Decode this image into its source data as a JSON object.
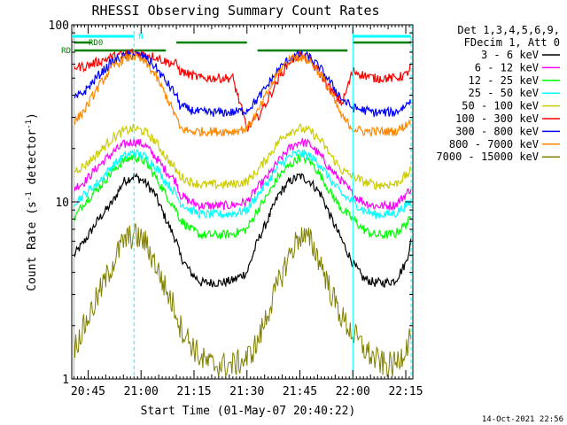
{
  "chart_data": {
    "type": "line",
    "title": "RHESSI Observing Summary Count Rates",
    "xlabel": "Start Time (01-May-07 20:40:22)",
    "ylabel": "Count Rate (s",
    "ylabel_sup": "-1",
    "ylabel_tail": " detector",
    "ylabel_tail_sup": "-1",
    "ylabel_close": ")",
    "y_scale": "log",
    "ylim": [
      1,
      100
    ],
    "y_ticks": [
      {
        "value": 1,
        "label": "1"
      },
      {
        "value": 10,
        "label": "10"
      },
      {
        "value": 100,
        "label": "100"
      }
    ],
    "xlim": [
      "20:40:22",
      "22:17:00"
    ],
    "x_ticks": [
      {
        "value": "20:45",
        "label": "20:45"
      },
      {
        "value": "21:00",
        "label": "21:00"
      },
      {
        "value": "21:15",
        "label": "21:15"
      },
      {
        "value": "21:30",
        "label": "21:30"
      },
      {
        "value": "21:45",
        "label": "21:45"
      },
      {
        "value": "22:00",
        "label": "22:00"
      },
      {
        "value": "22:15",
        "label": "22:15"
      }
    ],
    "legend_header": [
      "Det 1,3,4,5,6,9,",
      "FDecim 1, Att 0"
    ],
    "legend_position": "right",
    "footer_date": "14-Oct-2021 22:56",
    "flags": [
      {
        "label": "N",
        "color": "#00ffff",
        "intervals": [
          [
            "20:40:22",
            "20:58:00"
          ],
          [
            "22:00:00",
            "22:16:30"
          ]
        ]
      },
      {
        "label": "RD0",
        "color": "#008000",
        "intervals": [
          [
            "20:41:00",
            "20:46:00"
          ],
          [
            "21:10:00",
            "21:30:00"
          ],
          [
            "22:00:00",
            "22:16:30"
          ]
        ]
      },
      {
        "label": "RD",
        "color": "#008000",
        "intervals": [
          [
            "20:41:00",
            "21:07:00"
          ],
          [
            "21:33:00",
            "21:58:30"
          ]
        ]
      }
    ],
    "vlines": [
      {
        "time": "20:41:00",
        "color": "#00ffff",
        "style": "solid"
      },
      {
        "time": "20:58:00",
        "color": "#00ffff",
        "style": "dashed"
      },
      {
        "time": "22:00:00",
        "color": "#00ffff",
        "style": "solid"
      },
      {
        "time": "22:16:30",
        "color": "#00ffff",
        "style": "dashed"
      }
    ],
    "series": [
      {
        "name": "3 - 6 keV",
        "color": "#000000",
        "x": [
          "20:41:00",
          "20:44:00",
          "20:48:00",
          "20:52:00",
          "20:55:00",
          "20:58:00",
          "21:01:00",
          "21:04:00",
          "21:07:00",
          "21:10:00",
          "21:11:00",
          "21:14:00",
          "21:17:00",
          "21:20:00",
          "21:23:00",
          "21:26:00",
          "21:30:00",
          "21:33:00",
          "21:36:00",
          "21:39:00",
          "21:42:00",
          "21:45:00",
          "21:48:00",
          "21:51:00",
          "21:54:00",
          "21:57:00",
          "22:00:00",
          "22:03:00",
          "22:06:00",
          "22:09:00",
          "22:12:00",
          "22:15:00",
          "22:16:30"
        ],
        "y": [
          5,
          6,
          8,
          10,
          13,
          14,
          13,
          11,
          8,
          6,
          5,
          4,
          3.5,
          3.5,
          3.5,
          3.6,
          4,
          6,
          8,
          11,
          13,
          14,
          13,
          11,
          8,
          6,
          4.5,
          3.7,
          3.5,
          3.5,
          3.6,
          4.5,
          6
        ]
      },
      {
        "name": "6 - 12 keV",
        "color": "#ff00ff",
        "x": [
          "20:41:00",
          "20:44:00",
          "20:48:00",
          "20:52:00",
          "20:55:00",
          "20:58:00",
          "21:01:00",
          "21:04:00",
          "21:07:00",
          "21:10:00",
          "21:11:00",
          "21:14:00",
          "21:17:00",
          "21:20:00",
          "21:23:00",
          "21:26:00",
          "21:30:00",
          "21:33:00",
          "21:36:00",
          "21:39:00",
          "21:42:00",
          "21:45:00",
          "21:48:00",
          "21:51:00",
          "21:54:00",
          "21:57:00",
          "22:00:00",
          "22:03:00",
          "22:06:00",
          "22:09:00",
          "22:12:00",
          "22:15:00",
          "22:16:30"
        ],
        "y": [
          12,
          13,
          16,
          19,
          21,
          22,
          21,
          18,
          15,
          13,
          11,
          10,
          9.5,
          9.5,
          9.5,
          9.6,
          10,
          12,
          14,
          17,
          20,
          22,
          21,
          18,
          15,
          13,
          11,
          10,
          9.5,
          9.5,
          9.6,
          11,
          12
        ]
      },
      {
        "name": "12 - 25 keV",
        "color": "#00ff00",
        "x": [
          "20:41:00",
          "20:44:00",
          "20:48:00",
          "20:52:00",
          "20:55:00",
          "20:58:00",
          "21:01:00",
          "21:04:00",
          "21:07:00",
          "21:10:00",
          "21:11:00",
          "21:14:00",
          "21:17:00",
          "21:20:00",
          "21:23:00",
          "21:26:00",
          "21:30:00",
          "21:33:00",
          "21:36:00",
          "21:39:00",
          "21:42:00",
          "21:45:00",
          "21:48:00",
          "21:51:00",
          "21:54:00",
          "21:57:00",
          "22:00:00",
          "22:03:00",
          "22:06:00",
          "22:09:00",
          "22:12:00",
          "22:15:00",
          "22:16:30"
        ],
        "y": [
          8,
          10,
          12,
          15,
          17,
          18,
          17,
          14,
          11,
          9,
          8,
          7,
          6.5,
          6.5,
          6.5,
          6.6,
          7,
          9,
          11,
          14,
          16,
          18,
          17,
          14,
          11,
          9,
          8,
          7,
          6.5,
          6.5,
          6.6,
          7.5,
          8
        ]
      },
      {
        "name": "25 - 50 keV",
        "color": "#00ffff",
        "x": [
          "20:41:00",
          "20:44:00",
          "20:48:00",
          "20:52:00",
          "20:55:00",
          "20:58:00",
          "21:01:00",
          "21:04:00",
          "21:07:00",
          "21:10:00",
          "21:11:00",
          "21:14:00",
          "21:17:00",
          "21:20:00",
          "21:23:00",
          "21:26:00",
          "21:30:00",
          "21:33:00",
          "21:36:00",
          "21:39:00",
          "21:42:00",
          "21:45:00",
          "21:48:00",
          "21:51:00",
          "21:54:00",
          "21:57:00",
          "22:00:00",
          "22:03:00",
          "22:06:00",
          "22:09:00",
          "22:12:00",
          "22:15:00",
          "22:16:30"
        ],
        "y": [
          10,
          11,
          13,
          16,
          18,
          19,
          18,
          16,
          13,
          11,
          10,
          9,
          8.5,
          8.5,
          8.5,
          8.6,
          9,
          11,
          13,
          16,
          18,
          19,
          18,
          16,
          13,
          11,
          10,
          9,
          8.5,
          8.5,
          8.6,
          9.5,
          10
        ]
      },
      {
        "name": "50 - 100 keV",
        "color": "#cccc00",
        "x": [
          "20:41:00",
          "20:44:00",
          "20:48:00",
          "20:52:00",
          "20:55:00",
          "20:58:00",
          "21:01:00",
          "21:04:00",
          "21:07:00",
          "21:10:00",
          "21:11:00",
          "21:14:00",
          "21:17:00",
          "21:20:00",
          "21:23:00",
          "21:26:00",
          "21:30:00",
          "21:33:00",
          "21:36:00",
          "21:39:00",
          "21:42:00",
          "21:45:00",
          "21:48:00",
          "21:51:00",
          "21:54:00",
          "21:57:00",
          "22:00:00",
          "22:03:00",
          "22:06:00",
          "22:09:00",
          "22:12:00",
          "22:15:00",
          "22:16:30"
        ],
        "y": [
          15,
          16,
          19,
          23,
          25,
          26,
          25,
          22,
          18,
          15,
          14,
          13,
          12.5,
          12.5,
          12.5,
          12.6,
          13,
          15,
          18,
          22,
          25,
          26,
          25,
          22,
          18,
          15,
          14,
          13,
          12.5,
          12.5,
          12.6,
          14,
          15
        ]
      },
      {
        "name": "100 - 300 keV",
        "color": "#ff0000",
        "x": [
          "20:41:00",
          "20:44:00",
          "20:48:00",
          "20:52:00",
          "20:55:00",
          "20:58:00",
          "21:01:00",
          "21:04:00",
          "21:07:00",
          "21:10:00",
          "21:11:00",
          "21:14:00",
          "21:17:00",
          "21:20:00",
          "21:23:00",
          "21:26:00",
          "21:30:00",
          "21:33:00",
          "21:36:00",
          "21:39:00",
          "21:42:00",
          "21:45:00",
          "21:48:00",
          "21:51:00",
          "21:54:00",
          "21:57:00",
          "22:00:00",
          "22:03:00",
          "22:06:00",
          "22:09:00",
          "22:12:00",
          "22:15:00",
          "22:16:30"
        ],
        "y": [
          58,
          58,
          62,
          66,
          68,
          70,
          68,
          66,
          62,
          60,
          55,
          52,
          50,
          50,
          50,
          50,
          26,
          30,
          38,
          50,
          62,
          68,
          62,
          52,
          42,
          36,
          55,
          52,
          50,
          50,
          50,
          52,
          58
        ]
      },
      {
        "name": "300 - 800 keV",
        "color": "#0000ff",
        "x": [
          "20:41:00",
          "20:44:00",
          "20:48:00",
          "20:52:00",
          "20:55:00",
          "20:58:00",
          "21:01:00",
          "21:04:00",
          "21:07:00",
          "21:10:00",
          "21:11:00",
          "21:14:00",
          "21:17:00",
          "21:20:00",
          "21:23:00",
          "21:26:00",
          "21:30:00",
          "21:33:00",
          "21:36:00",
          "21:39:00",
          "21:42:00",
          "21:45:00",
          "21:48:00",
          "21:51:00",
          "21:54:00",
          "21:57:00",
          "22:00:00",
          "22:03:00",
          "22:06:00",
          "22:09:00",
          "22:12:00",
          "22:15:00",
          "22:16:30"
        ],
        "y": [
          38,
          42,
          52,
          62,
          66,
          68,
          66,
          58,
          48,
          40,
          35,
          33,
          32,
          32,
          32,
          32,
          33,
          38,
          46,
          56,
          64,
          68,
          65,
          56,
          46,
          38,
          34,
          33,
          32,
          32,
          32,
          35,
          38
        ]
      },
      {
        "name": "800 - 7000 keV",
        "color": "#ff8800",
        "x": [
          "20:41:00",
          "20:44:00",
          "20:48:00",
          "20:52:00",
          "20:55:00",
          "20:58:00",
          "21:01:00",
          "21:04:00",
          "21:07:00",
          "21:10:00",
          "21:11:00",
          "21:14:00",
          "21:17:00",
          "21:20:00",
          "21:23:00",
          "21:26:00",
          "21:30:00",
          "21:33:00",
          "21:36:00",
          "21:39:00",
          "21:42:00",
          "21:45:00",
          "21:48:00",
          "21:51:00",
          "21:54:00",
          "21:57:00",
          "22:00:00",
          "22:03:00",
          "22:06:00",
          "22:09:00",
          "22:12:00",
          "22:15:00",
          "22:16:30"
        ],
        "y": [
          28,
          33,
          45,
          58,
          64,
          66,
          62,
          52,
          40,
          30,
          26,
          25,
          25,
          25,
          25,
          25,
          26,
          32,
          42,
          54,
          64,
          66,
          62,
          52,
          40,
          30,
          26,
          25,
          25,
          25,
          25,
          27,
          29
        ]
      },
      {
        "name": "7000 - 15000 keV",
        "color": "#808000",
        "x": [
          "20:41:00",
          "20:44:00",
          "20:48:00",
          "20:52:00",
          "20:55:00",
          "20:58:00",
          "21:01:00",
          "21:04:00",
          "21:07:00",
          "21:10:00",
          "21:11:00",
          "21:14:00",
          "21:17:00",
          "21:20:00",
          "21:23:00",
          "21:26:00",
          "21:30:00",
          "21:33:00",
          "21:36:00",
          "21:39:00",
          "21:42:00",
          "21:45:00",
          "21:48:00",
          "21:51:00",
          "21:54:00",
          "21:57:00",
          "22:00:00",
          "22:03:00",
          "22:06:00",
          "22:09:00",
          "22:12:00",
          "22:15:00",
          "22:16:30"
        ],
        "y": [
          1.5,
          2,
          3,
          4.5,
          6,
          6.5,
          6,
          4.5,
          3.2,
          2.4,
          2,
          1.6,
          1.3,
          1.2,
          1.2,
          1.2,
          1.3,
          1.6,
          2.4,
          3.5,
          5,
          6.5,
          6,
          4.5,
          3,
          2.2,
          1.8,
          1.5,
          1.3,
          1.2,
          1.2,
          1.5,
          1.8
        ]
      }
    ]
  }
}
